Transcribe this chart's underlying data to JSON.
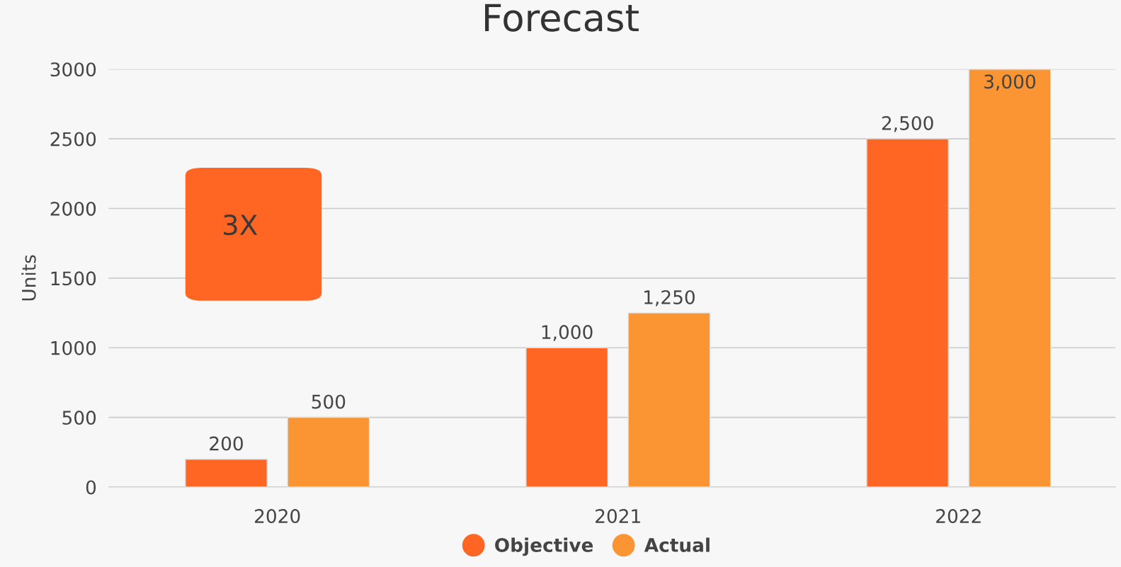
{
  "chart_data": {
    "type": "bar",
    "title": "Forecast",
    "ylabel": "Units",
    "categories": [
      "2020",
      "2021",
      "2022"
    ],
    "series": [
      {
        "name": "Objective",
        "color": "#ff6624",
        "values": [
          200,
          1000,
          2500
        ],
        "value_labels": [
          "200",
          "1,000",
          "2,500"
        ]
      },
      {
        "name": "Actual",
        "color": "#fb9433",
        "values": [
          500,
          1250,
          3000
        ],
        "value_labels": [
          "500",
          "1,250",
          "3,000"
        ]
      }
    ],
    "ylim": [
      0,
      3000
    ],
    "yticks": [
      0,
      500,
      1000,
      1500,
      2000,
      2500,
      3000
    ],
    "grid": "y",
    "legend": "bottom",
    "annotations": [
      "3X"
    ]
  }
}
